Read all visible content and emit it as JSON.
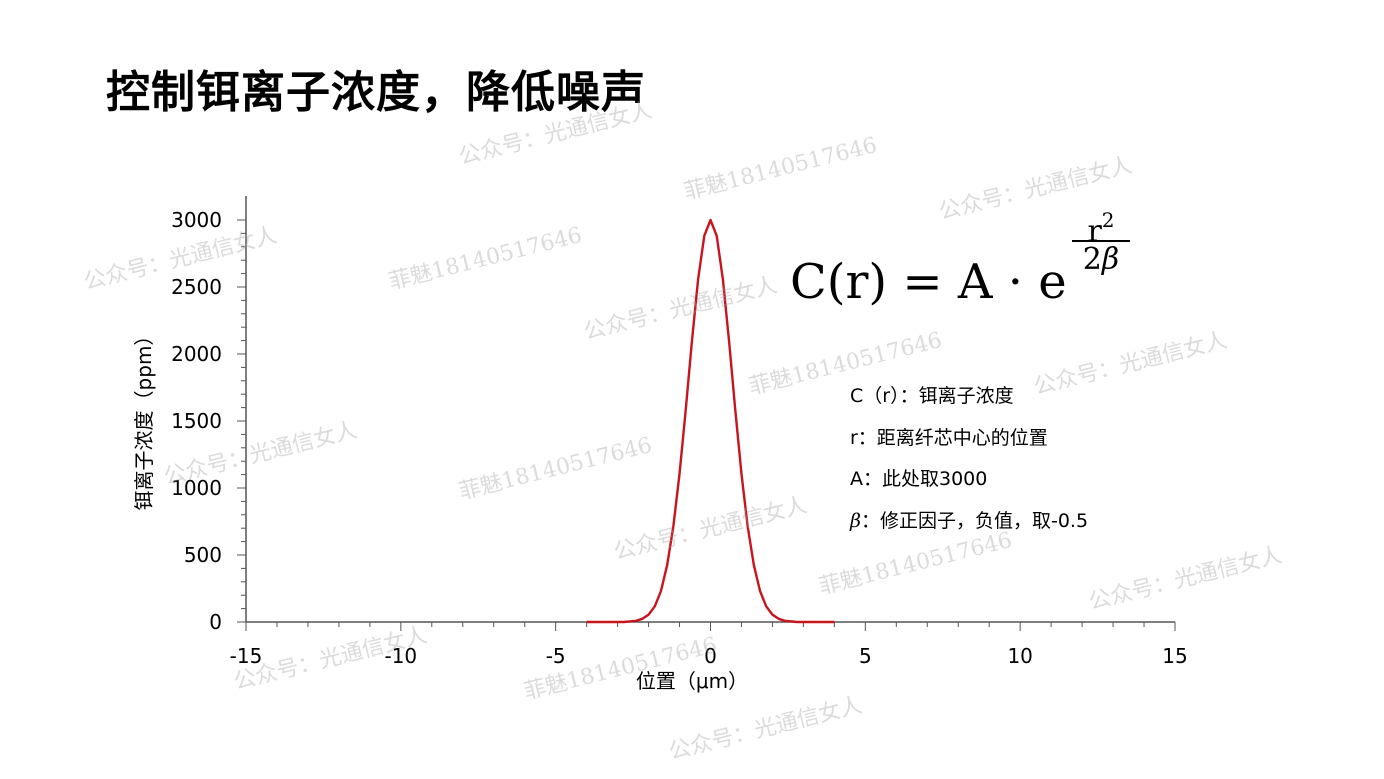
{
  "title": "控制铒离子浓度，降低噪声",
  "formula": {
    "lhs": "C(r) = A · e",
    "exp_numerator_base": "r",
    "exp_numerator_power": "2",
    "exp_denominator_coef": "2",
    "exp_denominator_symbol": "β"
  },
  "notes": [
    {
      "symbol": "",
      "text": "C（r）：铒离子浓度"
    },
    {
      "symbol": "",
      "text": "r：距离纤芯中心的位置"
    },
    {
      "symbol": "",
      "text": "A：此处取3000"
    },
    {
      "symbol": "β",
      "text": "：修正因子，负值，取-0.5"
    }
  ],
  "watermarks": [
    "公众号：光通信女人",
    "菲魅18140517646"
  ],
  "chart_data": {
    "type": "line",
    "xlabel": "位置（μm）",
    "ylabel": "铒离子浓度（ppm）",
    "xlim": [
      -15,
      15
    ],
    "ylim": [
      0,
      3000
    ],
    "xticks": [
      "-15",
      "-10",
      "-5",
      "0",
      "5",
      "10",
      "15"
    ],
    "xtick_values": [
      -15,
      -10,
      -5,
      0,
      5,
      10,
      15
    ],
    "yticks": [
      "0",
      "500",
      "1000",
      "1500",
      "2000",
      "2500",
      "3000"
    ],
    "ytick_values": [
      0,
      500,
      1000,
      1500,
      2000,
      2500,
      3000
    ],
    "grid": false,
    "series": [
      {
        "color": "#c8141e",
        "x": [
          -4,
          -3.6,
          -3.2,
          -2.8,
          -2.4,
          -2.2,
          -2.0,
          -1.8,
          -1.6,
          -1.4,
          -1.2,
          -1.0,
          -0.8,
          -0.6,
          -0.4,
          -0.2,
          0,
          0.2,
          0.4,
          0.6,
          0.8,
          1.0,
          1.2,
          1.4,
          1.6,
          1.8,
          2.0,
          2.2,
          2.4,
          2.8,
          3.2,
          3.6,
          4
        ],
        "y": [
          0,
          0,
          0,
          0,
          9,
          24,
          55,
          117,
          232,
          423,
          711,
          1104,
          1581,
          2093,
          2557,
          2882,
          3000,
          2882,
          2557,
          2093,
          1581,
          1104,
          711,
          423,
          232,
          117,
          55,
          24,
          9,
          0,
          0,
          0,
          0
        ]
      }
    ]
  }
}
